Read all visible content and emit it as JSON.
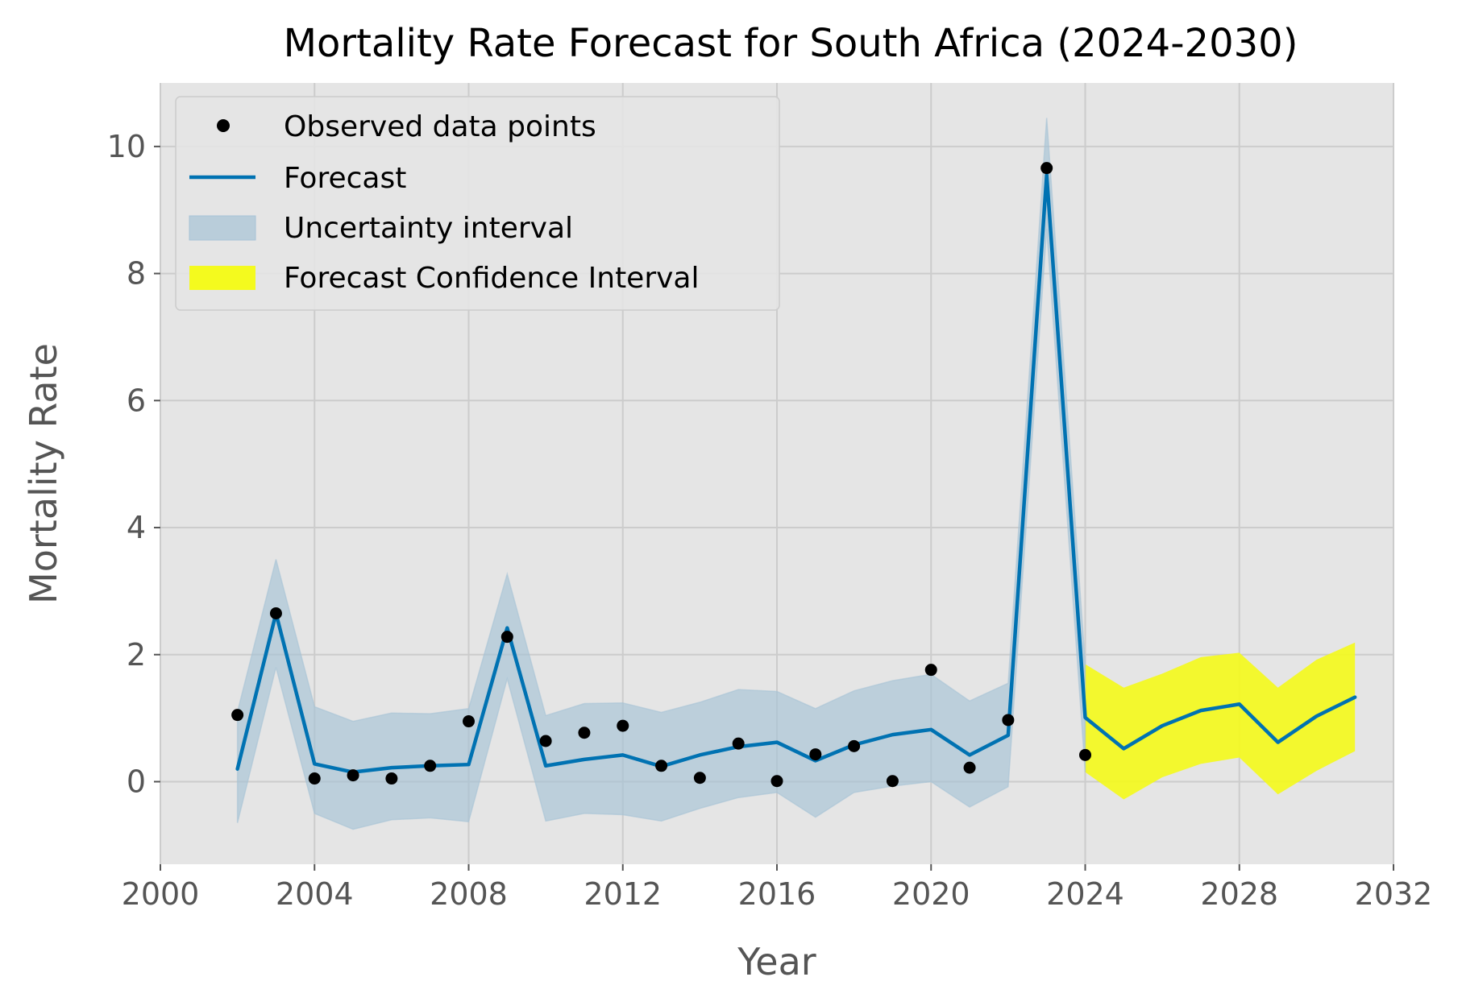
{
  "chart_data": {
    "type": "line",
    "title": "Mortality Rate Forecast for South Africa (2024-2030)",
    "xlabel": "Year",
    "ylabel": "Mortality Rate",
    "xlim": [
      2000,
      2032
    ],
    "ylim": [
      -1.3,
      11.0
    ],
    "xticks": [
      2000,
      2004,
      2008,
      2012,
      2016,
      2020,
      2024,
      2028,
      2032
    ],
    "xtick_labels": [
      "2000",
      "2004",
      "2008",
      "2012",
      "2016",
      "2020",
      "2024",
      "2028",
      "2032"
    ],
    "yticks": [
      0,
      2,
      4,
      6,
      8,
      10
    ],
    "ytick_labels": [
      "0",
      "2",
      "4",
      "6",
      "8",
      "10"
    ],
    "grid": true,
    "legend_position": "top-left",
    "colors": {
      "background": "#e5e5e5",
      "grid": "#cccccc",
      "forecast_line": "#0072b2",
      "uncertainty_fill": "#a6c3d6",
      "forecast_ci_fill": "#f4fa1e",
      "observed_points": "#000000"
    },
    "legend": [
      {
        "key": "observed",
        "label": "Observed data points"
      },
      {
        "key": "forecast",
        "label": "Forecast"
      },
      {
        "key": "uncertainty",
        "label": "Uncertainty interval"
      },
      {
        "key": "forecast_ci",
        "label": "Forecast Confidence Interval"
      }
    ],
    "observed": {
      "x": [
        2002,
        2003,
        2004,
        2005,
        2006,
        2007,
        2008,
        2009,
        2010,
        2011,
        2012,
        2013,
        2014,
        2015,
        2016,
        2017,
        2018,
        2019,
        2020,
        2021,
        2022,
        2023,
        2024
      ],
      "y": [
        1.05,
        2.65,
        0.05,
        0.1,
        0.05,
        0.25,
        0.95,
        2.28,
        0.64,
        0.77,
        0.88,
        0.25,
        0.06,
        0.6,
        0.01,
        0.43,
        0.56,
        0.01,
        1.76,
        0.22,
        0.97,
        9.66,
        0.42
      ]
    },
    "forecast": {
      "x": [
        2002,
        2003,
        2004,
        2005,
        2006,
        2007,
        2008,
        2009,
        2010,
        2011,
        2012,
        2013,
        2014,
        2015,
        2016,
        2017,
        2018,
        2019,
        2020,
        2021,
        2022,
        2023,
        2024,
        2025,
        2026,
        2027,
        2028,
        2029,
        2030,
        2031
      ],
      "y": [
        0.2,
        2.65,
        0.28,
        0.15,
        0.22,
        0.25,
        0.27,
        2.42,
        0.25,
        0.35,
        0.42,
        0.24,
        0.42,
        0.55,
        0.62,
        0.33,
        0.58,
        0.74,
        0.82,
        0.42,
        0.73,
        9.55,
        1.01,
        0.52,
        0.88,
        1.12,
        1.22,
        0.62,
        1.03,
        1.33
      ]
    },
    "uncertainty_interval": {
      "x": [
        2002,
        2003,
        2004,
        2005,
        2006,
        2007,
        2008,
        2009,
        2010,
        2011,
        2012,
        2013,
        2014,
        2015,
        2016,
        2017,
        2018,
        2019,
        2020,
        2021,
        2022,
        2023,
        2024
      ],
      "lower": [
        -0.65,
        1.8,
        -0.5,
        -0.75,
        -0.6,
        -0.57,
        -0.63,
        1.62,
        -0.62,
        -0.5,
        -0.52,
        -0.62,
        -0.42,
        -0.25,
        -0.17,
        -0.56,
        -0.17,
        -0.07,
        0.0,
        -0.4,
        -0.08,
        8.7,
        0.15
      ],
      "upper": [
        1.1,
        3.5,
        1.18,
        0.95,
        1.08,
        1.07,
        1.15,
        3.27,
        1.04,
        1.23,
        1.24,
        1.09,
        1.25,
        1.45,
        1.42,
        1.15,
        1.43,
        1.59,
        1.69,
        1.27,
        1.55,
        10.45,
        1.85
      ]
    },
    "forecast_confidence_interval": {
      "x": [
        2024,
        2025,
        2026,
        2027,
        2028,
        2029,
        2030,
        2031
      ],
      "lower": [
        0.15,
        -0.28,
        0.07,
        0.28,
        0.38,
        -0.2,
        0.17,
        0.48
      ],
      "upper": [
        1.85,
        1.48,
        1.7,
        1.96,
        2.03,
        1.48,
        1.92,
        2.19
      ]
    }
  }
}
